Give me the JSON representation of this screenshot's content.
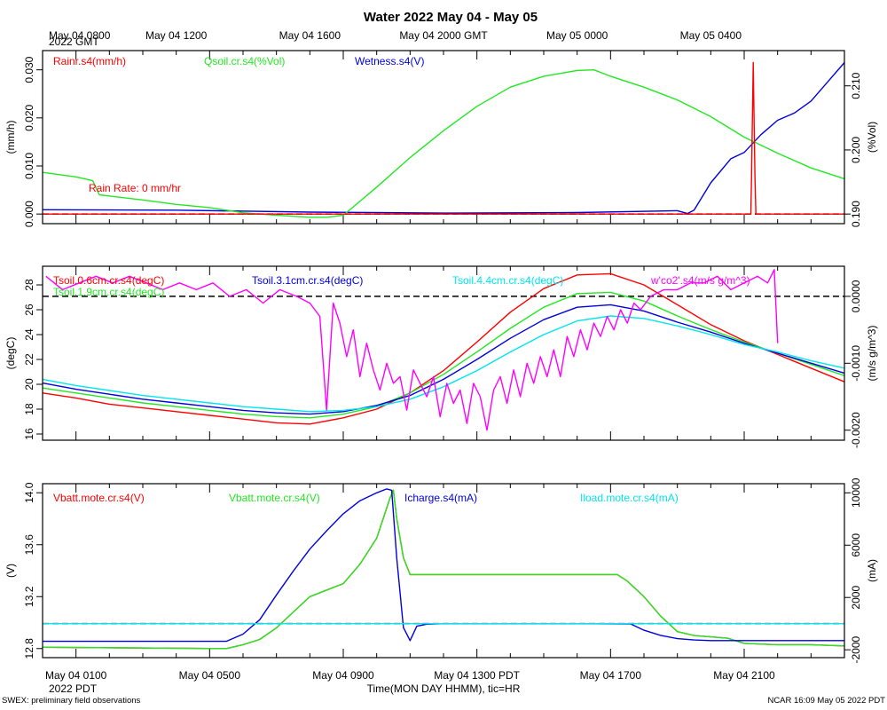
{
  "title": "Water 2022 May 04 - May 05",
  "footer": {
    "left": "SWEX: preliminary field observations",
    "right": "NCAR 16:09 May 05 2022 PDT",
    "xlabel": "Time(MON DAY HHMM), tic=HR"
  },
  "colors": {
    "red": "#ff0000",
    "green": "#22e822",
    "blue": "#0000dd",
    "cyan": "#00e5ee",
    "magenta": "#ff00ff",
    "black": "#000000"
  },
  "top_axis": {
    "year_label": "2022 GMT",
    "ticks": [
      {
        "t": 0,
        "label": "May 04 0800"
      },
      {
        "t": 4,
        "label": "May 04 1200"
      },
      {
        "t": 8,
        "label": "May 04 1600"
      },
      {
        "t": 12,
        "label": "May 04 2000 GMT"
      },
      {
        "t": 16,
        "label": "May 05 0000"
      },
      {
        "t": 20,
        "label": "May 05 0400"
      }
    ]
  },
  "bottom_axis": {
    "year_label": "2022 PDT",
    "ticks": [
      {
        "t": 1,
        "label": "May 04 0100"
      },
      {
        "t": 5,
        "label": "May 04 0500"
      },
      {
        "t": 9,
        "label": "May 04 0900"
      },
      {
        "t": 13,
        "label": "May 04 1300 PDT"
      },
      {
        "t": 17,
        "label": "May 04 1700"
      },
      {
        "t": 21,
        "label": "May 04 2100"
      }
    ]
  },
  "chart_data": [
    {
      "type": "line",
      "id": "water",
      "x_unit": "hours since May 04 0000 PDT",
      "xlim": [
        0,
        24
      ],
      "left_axis": {
        "label": "(mm/h)",
        "ylim": [
          -0.002,
          0.034
        ],
        "ticks": [
          0.0,
          0.01,
          0.02,
          0.03
        ],
        "tick_labels": [
          "0.000",
          "0.010",
          "0.020",
          "0.030"
        ]
      },
      "right_axis": {
        "label": "(%Vol)",
        "ylim": [
          0.1885,
          0.2155
        ],
        "ticks": [
          0.19,
          0.2,
          0.21
        ],
        "tick_labels": [
          "0.190",
          "0.200",
          "0.210"
        ]
      },
      "annotation": "Rain Rate: 0 mm/hr",
      "reference_line": {
        "axis": "left",
        "value": 0.0
      },
      "series": [
        {
          "name": "Rainr.s4(mm/h)",
          "color": "red",
          "axis": "left",
          "x": [
            0,
            21.2,
            21.22,
            21.27,
            21.32,
            21.35,
            24
          ],
          "y": [
            0,
            0,
            0.008,
            0.0315,
            0.008,
            0,
            0
          ]
        },
        {
          "name": "Qsoil.cr.s4(%Vol)",
          "color": "green",
          "axis": "right",
          "x": [
            0,
            1,
            1.5,
            1.7,
            3,
            4,
            5,
            6,
            7,
            8,
            8.5,
            9,
            10,
            11,
            12,
            13,
            14,
            15,
            16,
            16.5,
            17,
            18,
            19,
            20,
            21,
            22,
            23,
            24
          ],
          "y": [
            0.1965,
            0.1958,
            0.1952,
            0.193,
            0.1922,
            0.1915,
            0.191,
            0.1902,
            0.1898,
            0.1895,
            0.1895,
            0.1898,
            0.1942,
            0.1988,
            0.203,
            0.2068,
            0.2098,
            0.2115,
            0.2124,
            0.2125,
            0.2115,
            0.2098,
            0.2078,
            0.2052,
            0.202,
            0.1995,
            0.1972,
            0.1955
          ]
        },
        {
          "name": "Wetness.s4(V)",
          "color": "blue",
          "axis": "left",
          "x": [
            0,
            4,
            8,
            12,
            16,
            19.0,
            19.3,
            19.5,
            20,
            20.6,
            21,
            21.5,
            22,
            22.5,
            23,
            23.5,
            24
          ],
          "y": [
            0.0009,
            0.0008,
            0.0004,
            0.0002,
            0.0003,
            0.0007,
            0.0001,
            0.0008,
            0.0065,
            0.0115,
            0.0128,
            0.0165,
            0.0195,
            0.021,
            0.0235,
            0.0275,
            0.0315
          ]
        }
      ]
    },
    {
      "type": "line",
      "id": "temperature",
      "x_unit": "hours since May 04 0000 PDT",
      "xlim": [
        0,
        24
      ],
      "left_axis": {
        "label": "(degC)",
        "ylim": [
          15.5,
          29.5
        ],
        "ticks": [
          16,
          18,
          20,
          22,
          24,
          26,
          28
        ],
        "tick_labels": [
          "16",
          "18",
          "20",
          "22",
          "24",
          "26",
          "28"
        ]
      },
      "right_axis": {
        "label": "(m/s g/m^3)",
        "ylim": [
          -0.00215,
          0.00045
        ],
        "ticks": [
          -0.002,
          -0.001,
          0.0
        ],
        "tick_labels": [
          "-0.0020",
          "-0.0010",
          "0.0000"
        ]
      },
      "reference_line": {
        "axis": "right",
        "value": 0.0
      },
      "hidden_series_label": "Tsoil.1.9cm.cr.s4(degC)",
      "series": [
        {
          "name": "Tsoil.0.6cm.cr.s4(degC)",
          "color": "red",
          "axis": "left",
          "x": [
            0,
            1,
            2,
            3,
            4,
            5,
            6,
            7,
            8,
            9,
            10,
            11,
            12,
            13,
            14,
            15,
            16,
            17,
            18,
            19,
            20,
            21,
            22,
            23,
            24
          ],
          "y": [
            19.3,
            18.9,
            18.4,
            18.1,
            17.8,
            17.5,
            17.2,
            16.9,
            16.8,
            17.3,
            18.0,
            19.3,
            21.1,
            23.4,
            25.8,
            27.7,
            28.8,
            28.9,
            28.0,
            26.4,
            24.8,
            23.5,
            22.4,
            21.3,
            20.2
          ]
        },
        {
          "name": "Tsoil.1.9cm.cr.s4(degC)",
          "color": "green",
          "axis": "left",
          "x": [
            0,
            1,
            2,
            3,
            4,
            5,
            6,
            7,
            8,
            9,
            10,
            11,
            12,
            13,
            14,
            15,
            16,
            17,
            18,
            19,
            20,
            21,
            22,
            23,
            24
          ],
          "y": [
            19.7,
            19.3,
            18.9,
            18.5,
            18.2,
            17.9,
            17.6,
            17.4,
            17.3,
            17.6,
            18.2,
            19.3,
            20.8,
            22.6,
            24.5,
            26.2,
            27.3,
            27.4,
            26.7,
            25.5,
            24.4,
            23.4,
            22.5,
            21.6,
            20.7
          ]
        },
        {
          "name": "Tsoil.3.1cm.cr.s4(degC)",
          "color": "blue",
          "axis": "left",
          "x": [
            0,
            1,
            2,
            3,
            4,
            5,
            6,
            7,
            8,
            9,
            10,
            11,
            12,
            13,
            14,
            15,
            16,
            17,
            18,
            19,
            20,
            21,
            22,
            23,
            24
          ],
          "y": [
            20.1,
            19.6,
            19.2,
            18.8,
            18.5,
            18.2,
            17.9,
            17.7,
            17.6,
            17.8,
            18.3,
            19.1,
            20.4,
            22.0,
            23.7,
            25.2,
            26.2,
            26.4,
            25.9,
            25.0,
            24.2,
            23.3,
            22.5,
            21.7,
            20.9
          ]
        },
        {
          "name": "Tsoil.4.4cm.cr.s4(degC)",
          "color": "cyan",
          "axis": "left",
          "x": [
            0,
            1,
            2,
            3,
            4,
            5,
            6,
            7,
            8,
            9,
            10,
            11,
            12,
            13,
            14,
            15,
            16,
            17,
            18,
            19,
            20,
            21,
            22,
            23,
            24
          ],
          "y": [
            20.4,
            19.9,
            19.5,
            19.1,
            18.8,
            18.5,
            18.2,
            18.0,
            17.8,
            17.9,
            18.2,
            18.8,
            19.8,
            21.1,
            22.6,
            24.0,
            25.1,
            25.5,
            25.3,
            24.7,
            24.0,
            23.2,
            22.6,
            21.9,
            21.3
          ]
        },
        {
          "name": "w'co2'.s4(m/s g/m^3)",
          "color": "magenta",
          "axis": "right",
          "x": [
            0.1,
            0.6,
            1.1,
            1.6,
            2.1,
            2.6,
            3.1,
            3.6,
            4.1,
            4.6,
            5.1,
            5.6,
            6.1,
            6.6,
            7.1,
            7.6,
            8.0,
            8.3,
            8.5,
            8.7,
            8.9,
            9.1,
            9.3,
            9.5,
            9.7,
            9.9,
            10.1,
            10.3,
            10.5,
            10.7,
            10.9,
            11.1,
            11.3,
            11.5,
            11.7,
            11.9,
            12.1,
            12.3,
            12.5,
            12.7,
            12.9,
            13.1,
            13.3,
            13.5,
            13.7,
            13.9,
            14.1,
            14.3,
            14.5,
            14.7,
            14.9,
            15.1,
            15.3,
            15.5,
            15.7,
            15.9,
            16.1,
            16.3,
            16.5,
            16.7,
            16.9,
            17.1,
            17.3,
            17.5,
            17.7,
            17.9,
            18.2,
            18.6,
            19.0,
            19.4,
            19.8,
            20.2,
            20.6,
            21.0,
            21.4,
            21.7,
            21.9,
            22.0
          ],
          "y": [
            0.0003,
            0.0001,
            0.0002,
            0.0003,
            0.0002,
            0.0003,
            0.0002,
            0.0001,
            0.0002,
            0.0001,
            0.0002,
            0.0,
            0.0001,
            -0.0001,
            0.0001,
            0.0,
            -0.0001,
            -0.0003,
            -0.0017,
            -0.0001,
            -0.0004,
            -0.0009,
            -0.0005,
            -0.0012,
            -0.0007,
            -0.0011,
            -0.0014,
            -0.001,
            -0.0013,
            -0.0012,
            -0.0017,
            -0.0011,
            -0.0013,
            -0.0015,
            -0.0012,
            -0.0018,
            -0.0013,
            -0.0016,
            -0.0014,
            -0.0019,
            -0.0013,
            -0.0015,
            -0.002,
            -0.0014,
            -0.0012,
            -0.0016,
            -0.0011,
            -0.0015,
            -0.001,
            -0.0013,
            -0.0009,
            -0.0012,
            -0.0008,
            -0.0012,
            -0.0006,
            -0.0009,
            -0.0005,
            -0.0008,
            -0.0004,
            -0.0006,
            -0.0003,
            -0.0005,
            -0.0002,
            -0.0004,
            -0.0001,
            -0.0002,
            0.0,
            0.0001,
            0.0001,
            0.0002,
            0.0002,
            0.0003,
            0.0001,
            0.0002,
            0.0003,
            0.0002,
            0.0004,
            -0.0007
          ]
        }
      ]
    },
    {
      "type": "line",
      "id": "power",
      "x_unit": "hours since May 04 0000 PDT",
      "xlim": [
        0,
        24
      ],
      "left_axis": {
        "label": "(V)",
        "ylim": [
          12.73,
          14.07
        ],
        "ticks": [
          12.8,
          13.2,
          13.6,
          14.0
        ],
        "tick_labels": [
          "12.8",
          "13.2",
          "13.6",
          "14.0"
        ]
      },
      "right_axis": {
        "label": "(mA)",
        "ylim": [
          -2600,
          10700
        ],
        "ticks": [
          -2000,
          2000,
          6000,
          10000
        ],
        "tick_labels": [
          "-2000",
          "2000",
          "6000",
          "10000"
        ]
      },
      "reference_line": {
        "axis": "right",
        "value": 0
      },
      "series": [
        {
          "name": "Vbatt.mote.cr.s4(V)",
          "color": "red",
          "axis": "left",
          "x": [
            0,
            5.5,
            6.0,
            6.5,
            7,
            8,
            9,
            9.5,
            10,
            10.4,
            10.5,
            10.6,
            10.8,
            11,
            12,
            13,
            14,
            15,
            16,
            17,
            17.2,
            17.5,
            18,
            18.5,
            19,
            19.5,
            20,
            20.5,
            21,
            22,
            23,
            24
          ],
          "y": [
            12.81,
            12.8,
            12.83,
            12.87,
            12.96,
            13.2,
            13.3,
            13.45,
            13.65,
            13.96,
            14.02,
            13.8,
            13.5,
            13.37,
            13.37,
            13.37,
            13.37,
            13.37,
            13.37,
            13.37,
            13.37,
            13.32,
            13.2,
            13.05,
            12.93,
            12.9,
            12.89,
            12.88,
            12.84,
            12.83,
            12.83,
            12.82
          ]
        },
        {
          "name": "Vbatt.mote.cr.s4(V)",
          "color": "green",
          "axis": "left",
          "x": [
            0,
            5.5,
            6.0,
            6.5,
            7,
            8,
            9,
            9.5,
            10,
            10.4,
            10.5,
            10.6,
            10.8,
            11,
            12,
            13,
            14,
            15,
            16,
            17,
            17.2,
            17.5,
            18,
            18.5,
            19,
            19.5,
            20,
            20.5,
            21,
            22,
            23,
            24
          ],
          "y": [
            12.81,
            12.8,
            12.83,
            12.87,
            12.96,
            13.2,
            13.3,
            13.45,
            13.65,
            13.96,
            14.02,
            13.8,
            13.5,
            13.37,
            13.37,
            13.37,
            13.37,
            13.37,
            13.37,
            13.37,
            13.37,
            13.32,
            13.2,
            13.05,
            12.93,
            12.9,
            12.89,
            12.88,
            12.84,
            12.83,
            12.83,
            12.82
          ]
        },
        {
          "name": "Icharge.s4(mA)",
          "color": "blue",
          "axis": "right",
          "x": [
            0,
            5.5,
            6.0,
            6.5,
            7,
            7.5,
            8,
            8.5,
            9,
            9.5,
            10,
            10.3,
            10.45,
            10.6,
            10.8,
            11,
            11.2,
            11.5,
            12,
            14,
            16,
            17.6,
            18.0,
            18.5,
            19,
            19.5,
            20,
            21,
            22,
            24
          ],
          "y": [
            -1350,
            -1350,
            -800,
            300,
            2200,
            4000,
            5700,
            7100,
            8400,
            9400,
            10000,
            10300,
            10200,
            5000,
            -300,
            -1300,
            -200,
            -40,
            0,
            0,
            0,
            -20,
            -500,
            -900,
            -1150,
            -1250,
            -1300,
            -1300,
            -1300,
            -1300
          ]
        },
        {
          "name": "Iload.mote.cr.s4(mA)",
          "color": "cyan",
          "axis": "right",
          "x": [
            0,
            24
          ],
          "y": [
            0,
            0
          ]
        }
      ]
    }
  ]
}
